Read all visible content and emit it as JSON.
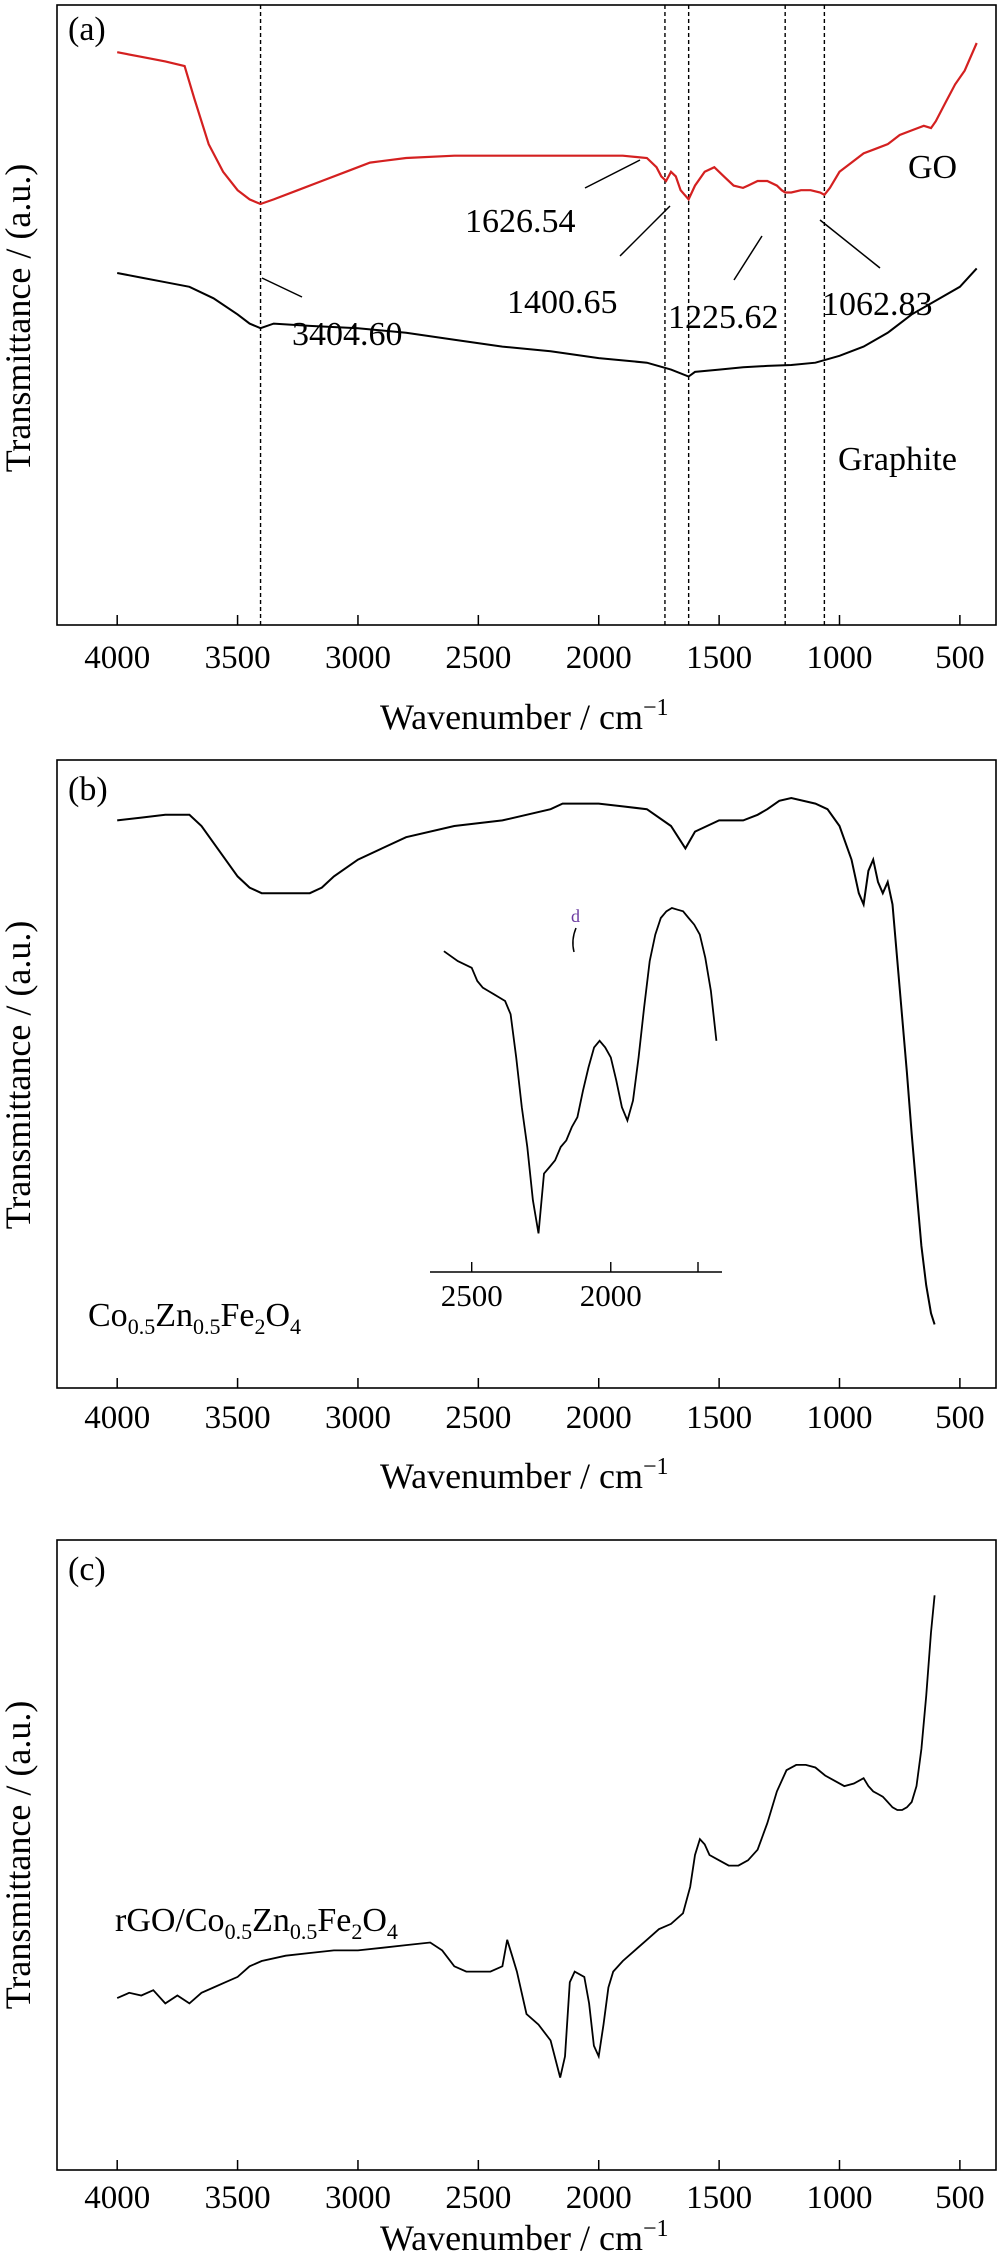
{
  "chart_data": [
    {
      "type": "line",
      "panel_label": "(a)",
      "xlabel": "Wavenumber / cm",
      "xlabel_sup": "−1",
      "ylabel": "Transmittance / (a.u.)",
      "xlim": [
        4250,
        350
      ],
      "ylim": [
        0,
        100
      ],
      "x_ticks": [
        "4000",
        "3500",
        "3000",
        "2500",
        "2000",
        "1500",
        "1000",
        "500"
      ],
      "x_tick_values": [
        4000,
        3500,
        3000,
        2500,
        2000,
        1500,
        1000,
        500
      ],
      "series": [
        {
          "name": "GO",
          "color": "#d42020",
          "x": [
            4000,
            3900,
            3800,
            3720,
            3680,
            3620,
            3560,
            3500,
            3450,
            3404.6,
            3350,
            3250,
            3150,
            3050,
            2950,
            2800,
            2600,
            2400,
            2200,
            2000,
            1900,
            1800,
            1760,
            1740,
            1720,
            1700,
            1680,
            1660,
            1626.54,
            1600,
            1560,
            1520,
            1480,
            1440,
            1400.65,
            1380,
            1340,
            1300,
            1260,
            1240,
            1225.62,
            1200,
            1160,
            1120,
            1080,
            1062.83,
            1040,
            1000,
            950,
            900,
            850,
            800,
            750,
            700,
            650,
            620,
            600,
            560,
            520,
            480,
            430
          ],
          "y": [
            93,
            92,
            91,
            90,
            83,
            73,
            67,
            63,
            61,
            60,
            61,
            63,
            65,
            67,
            69,
            70,
            70.5,
            70.5,
            70.5,
            70.5,
            70.5,
            70,
            68,
            66,
            65,
            67,
            66,
            63,
            61,
            64,
            67,
            68,
            66,
            64,
            63.5,
            64,
            65,
            65,
            64,
            63,
            62.5,
            62.5,
            63,
            63,
            62.5,
            62,
            63.5,
            67,
            69,
            71,
            72,
            73,
            75,
            76,
            77,
            76.5,
            78,
            82,
            86,
            89,
            95
          ]
        },
        {
          "name": "Graphite",
          "color": "#000000",
          "x": [
            4000,
            3900,
            3800,
            3700,
            3600,
            3500,
            3450,
            3404.6,
            3350,
            3200,
            3000,
            2800,
            2600,
            2400,
            2200,
            2000,
            1800,
            1700,
            1626.54,
            1600,
            1500,
            1400,
            1300,
            1200,
            1100,
            1000,
            900,
            800,
            700,
            600,
            500,
            430
          ],
          "y": [
            45,
            44,
            43,
            42,
            39.5,
            36,
            34,
            33,
            34,
            33.5,
            33,
            32,
            30.5,
            29,
            28,
            26.5,
            25.5,
            24,
            22.5,
            23.5,
            24,
            24.5,
            24.8,
            25,
            25.5,
            27,
            29,
            32,
            36,
            39,
            42,
            46
          ]
        }
      ],
      "peaks": [
        "3404.60",
        "1626.54",
        "1400.65",
        "1225.62",
        "1062.83"
      ],
      "peak_line_x": [
        3404.6,
        1725,
        1626.54,
        1225.62,
        1062.83
      ]
    },
    {
      "type": "line",
      "panel_label": "(b)",
      "xlabel": "Wavenumber / cm",
      "xlabel_sup": "−1",
      "ylabel": "Transmittance / (a.u.)",
      "xlim": [
        4250,
        350
      ],
      "ylim": [
        0,
        100
      ],
      "x_ticks": [
        "4000",
        "3500",
        "3000",
        "2500",
        "2000",
        "1500",
        "1000",
        "500"
      ],
      "x_tick_values": [
        4000,
        3500,
        3000,
        2500,
        2000,
        1500,
        1000,
        500
      ],
      "series": [
        {
          "name": "Co0.5Zn0.5Fe2O4",
          "color": "#000000",
          "x": [
            4000,
            3900,
            3800,
            3700,
            3650,
            3600,
            3550,
            3500,
            3450,
            3400,
            3350,
            3300,
            3250,
            3200,
            3150,
            3100,
            3000,
            2900,
            2800,
            2600,
            2400,
            2300,
            2200,
            2150,
            2000,
            1900,
            1800,
            1700,
            1640,
            1600,
            1500,
            1400,
            1340,
            1300,
            1250,
            1200,
            1100,
            1050,
            1000,
            950,
            920,
            900,
            880,
            860,
            840,
            820,
            800,
            780,
            760,
            740,
            720,
            700,
            680,
            660,
            640,
            620,
            605
          ],
          "y": [
            91,
            91.5,
            92,
            92,
            90,
            87,
            84,
            81,
            79,
            78,
            78,
            78,
            78,
            78,
            79,
            81,
            84,
            86,
            88,
            90,
            91,
            92,
            93,
            94,
            94,
            93.5,
            93,
            90,
            86,
            89,
            91,
            91,
            92,
            93,
            94.5,
            95,
            94,
            93,
            90,
            84,
            78,
            76,
            82,
            84,
            80,
            78,
            80,
            76,
            66,
            56,
            46,
            35,
            25,
            15,
            8,
            3,
            1
          ]
        }
      ],
      "inset": {
        "xlim": [
          2650,
          1600
        ],
        "x_ticks": [
          "2500",
          "2000"
        ],
        "x_tick_values": [
          2500,
          2000
        ],
        "marker": "d",
        "series": {
          "x": [
            2600,
            2550,
            2500,
            2480,
            2460,
            2440,
            2420,
            2400,
            2380,
            2360,
            2340,
            2320,
            2300,
            2280,
            2260,
            2240,
            2220,
            2200,
            2180,
            2160,
            2140,
            2120,
            2100,
            2080,
            2060,
            2040,
            2020,
            2000,
            1980,
            1960,
            1940,
            1920,
            1900,
            1880,
            1860,
            1840,
            1820,
            1800,
            1780,
            1760,
            1740,
            1720,
            1700,
            1680,
            1660,
            1640,
            1620
          ],
          "y": [
            87,
            84,
            82,
            78,
            76,
            75,
            74,
            73,
            72,
            68,
            55,
            40,
            28,
            12,
            2,
            20,
            22,
            24,
            28,
            30,
            34,
            37,
            45,
            52,
            58,
            60,
            58,
            55,
            48,
            40,
            36,
            42,
            55,
            70,
            84,
            92,
            97,
            99,
            100,
            99.5,
            99,
            97,
            95,
            92,
            85,
            75,
            60
          ]
        }
      }
    },
    {
      "type": "line",
      "panel_label": "(c)",
      "xlabel": "Wavenumber / cm",
      "xlabel_sup": "−1",
      "ylabel": "Transmittance / (a.u.)",
      "xlim": [
        4250,
        350
      ],
      "ylim": [
        0,
        100
      ],
      "x_ticks": [
        "4000",
        "3500",
        "3000",
        "2500",
        "2000",
        "1500",
        "1000",
        "500"
      ],
      "x_tick_values": [
        4000,
        3500,
        3000,
        2500,
        2000,
        1500,
        1000,
        500
      ],
      "series": [
        {
          "name": "rGO/Co0.5Zn0.5Fe2O4",
          "color": "#000000",
          "x": [
            4000,
            3950,
            3900,
            3850,
            3800,
            3750,
            3700,
            3650,
            3600,
            3550,
            3500,
            3450,
            3400,
            3300,
            3200,
            3100,
            3000,
            2900,
            2800,
            2700,
            2650,
            2600,
            2550,
            2500,
            2450,
            2400,
            2380,
            2360,
            2340,
            2320,
            2300,
            2250,
            2200,
            2160,
            2140,
            2120,
            2100,
            2060,
            2040,
            2020,
            2000,
            1980,
            1960,
            1940,
            1900,
            1850,
            1800,
            1750,
            1700,
            1650,
            1620,
            1600,
            1580,
            1560,
            1540,
            1500,
            1460,
            1420,
            1380,
            1340,
            1300,
            1260,
            1220,
            1180,
            1140,
            1100,
            1060,
            1020,
            980,
            940,
            900,
            880,
            860,
            840,
            820,
            800,
            780,
            760,
            740,
            720,
            700,
            680,
            660,
            640,
            620,
            605
          ],
          "y": [
            23,
            24,
            23.5,
            24.5,
            22,
            23.5,
            22,
            24,
            25,
            26,
            27,
            29,
            30,
            31,
            31.5,
            32,
            32,
            32.5,
            33,
            33.5,
            32,
            29,
            28,
            28,
            28,
            29,
            34,
            31,
            28,
            24,
            20,
            18,
            15,
            8,
            12,
            26,
            28,
            27,
            22,
            14,
            12,
            18,
            25,
            28,
            30,
            32,
            34,
            36,
            37,
            39,
            44,
            50,
            53,
            52,
            50,
            49,
            48,
            48,
            49,
            51,
            56,
            62,
            66,
            67,
            67,
            66.5,
            65,
            64,
            63,
            63.5,
            64.5,
            63,
            62,
            61.5,
            61,
            60,
            59,
            58.5,
            58.5,
            59,
            60,
            63,
            70,
            80,
            92,
            99
          ]
        }
      ]
    }
  ]
}
